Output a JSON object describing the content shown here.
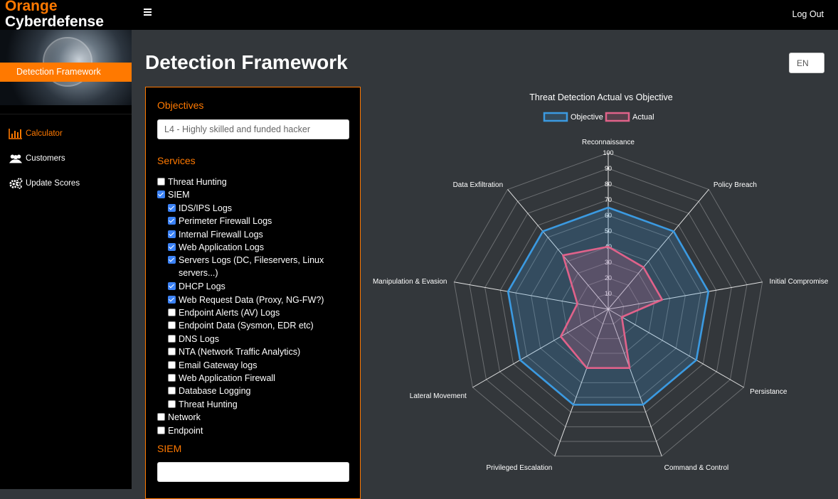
{
  "brand": {
    "line1": "Orange",
    "line2": "Cyberdefense",
    "accent": "#ff7900"
  },
  "sidebar": {
    "active_label": "Detection Framework",
    "items": [
      {
        "label": "Calculator",
        "icon": "bar-chart-icon",
        "active": true
      },
      {
        "label": "Customers",
        "icon": "users-icon",
        "active": false
      },
      {
        "label": "Update Scores",
        "icon": "gears-icon",
        "active": false
      }
    ]
  },
  "topbar": {
    "logout_label": "Log Out",
    "menu_icon": "hamburger-icon"
  },
  "page": {
    "title": "Detection Framework",
    "lang": "EN"
  },
  "panel": {
    "objectives_title": "Objectives",
    "objective_value": "L4 - Highly skilled and funded hacker",
    "services_title": "Services",
    "services": [
      {
        "label": "Threat Hunting",
        "checked": false,
        "indent": 0
      },
      {
        "label": "SIEM",
        "checked": true,
        "indent": 0
      },
      {
        "label": "IDS/IPS Logs",
        "checked": true,
        "indent": 1
      },
      {
        "label": "Perimeter Firewall Logs",
        "checked": true,
        "indent": 1
      },
      {
        "label": "Internal Firewall Logs",
        "checked": true,
        "indent": 1
      },
      {
        "label": "Web Application Logs",
        "checked": true,
        "indent": 1
      },
      {
        "label": "Servers Logs (DC, Fileservers, Linux",
        "label2": "servers...)",
        "checked": true,
        "indent": 1
      },
      {
        "label": "DHCP Logs",
        "checked": true,
        "indent": 1
      },
      {
        "label": "Web Request Data (Proxy, NG-FW?)",
        "checked": true,
        "indent": 1
      },
      {
        "label": "Endpoint Alerts (AV) Logs",
        "checked": false,
        "indent": 1
      },
      {
        "label": "Endpoint Data (Sysmon, EDR etc)",
        "checked": false,
        "indent": 1
      },
      {
        "label": "DNS Logs",
        "checked": false,
        "indent": 1
      },
      {
        "label": "NTA (Network Traffic Analytics)",
        "checked": false,
        "indent": 1
      },
      {
        "label": "Email Gateway logs",
        "checked": false,
        "indent": 1
      },
      {
        "label": "Web Application Firewall",
        "checked": false,
        "indent": 1
      },
      {
        "label": "Database Logging",
        "checked": false,
        "indent": 1
      },
      {
        "label": "Threat Hunting",
        "checked": false,
        "indent": 1
      },
      {
        "label": "Network",
        "checked": false,
        "indent": 0
      },
      {
        "label": "Endpoint",
        "checked": false,
        "indent": 0
      }
    ],
    "siem_title": "SIEM",
    "siem_value": ""
  },
  "chart_data": {
    "type": "radar",
    "title": "Threat Detection Actual vs Objective",
    "categories": [
      "Reconnaissance",
      "Policy Breach",
      "Initial Compromise",
      "Persistance",
      "Command & Control",
      "Privileged Escalation",
      "Lateral Movement",
      "Manipulation & Evasion",
      "Data Exfiltration"
    ],
    "rlim": [
      0,
      100
    ],
    "ticks": [
      10,
      20,
      30,
      40,
      50,
      60,
      70,
      80,
      90,
      100
    ],
    "series": [
      {
        "name": "Objective",
        "values": [
          65,
          65,
          65,
          65,
          65,
          65,
          65,
          65,
          65
        ],
        "color": "#3b9ae1"
      },
      {
        "name": "Actual",
        "values": [
          40,
          35,
          35,
          10,
          40,
          40,
          35,
          20,
          45
        ],
        "color": "#e0628a"
      }
    ],
    "legend": "top",
    "grid": true
  }
}
